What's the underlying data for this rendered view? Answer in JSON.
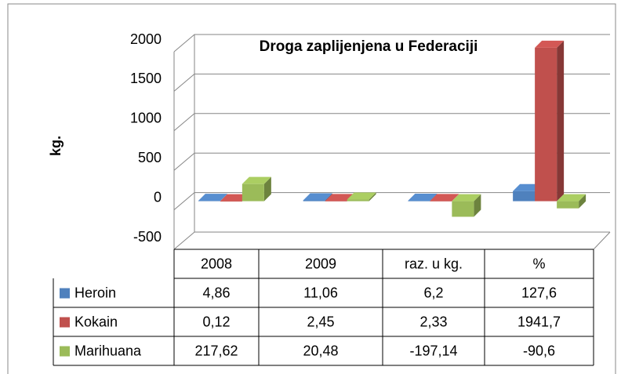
{
  "chart_data": {
    "type": "bar3d",
    "title": "Droga zaplijenjena u Federaciji",
    "y_label": "kg.",
    "categories": [
      "2008",
      "2009",
      "raz. u kg.",
      "%"
    ],
    "series": [
      {
        "name": "Heroin",
        "color": "#4f81bd",
        "values": [
          4.86,
          11.06,
          6.2,
          127.6
        ],
        "value_labels": [
          "4,86",
          "11,06",
          "6,2",
          "127,6"
        ]
      },
      {
        "name": "Kokain",
        "color": "#c0504d",
        "values": [
          0.12,
          2.45,
          2.33,
          1941.7
        ],
        "value_labels": [
          "0,12",
          "2,45",
          "2,33",
          "1941,7"
        ]
      },
      {
        "name": "Marihuana",
        "color": "#9bbb59",
        "values": [
          217.62,
          20.48,
          -197.14,
          -90.6
        ],
        "value_labels": [
          "217,62",
          "20,48",
          "-197,14",
          "-90,6"
        ]
      }
    ],
    "ylim": [
      -500,
      2000
    ],
    "yticks": [
      -500,
      0,
      500,
      1000,
      1500,
      2000
    ],
    "grid": true,
    "data_table": true
  }
}
